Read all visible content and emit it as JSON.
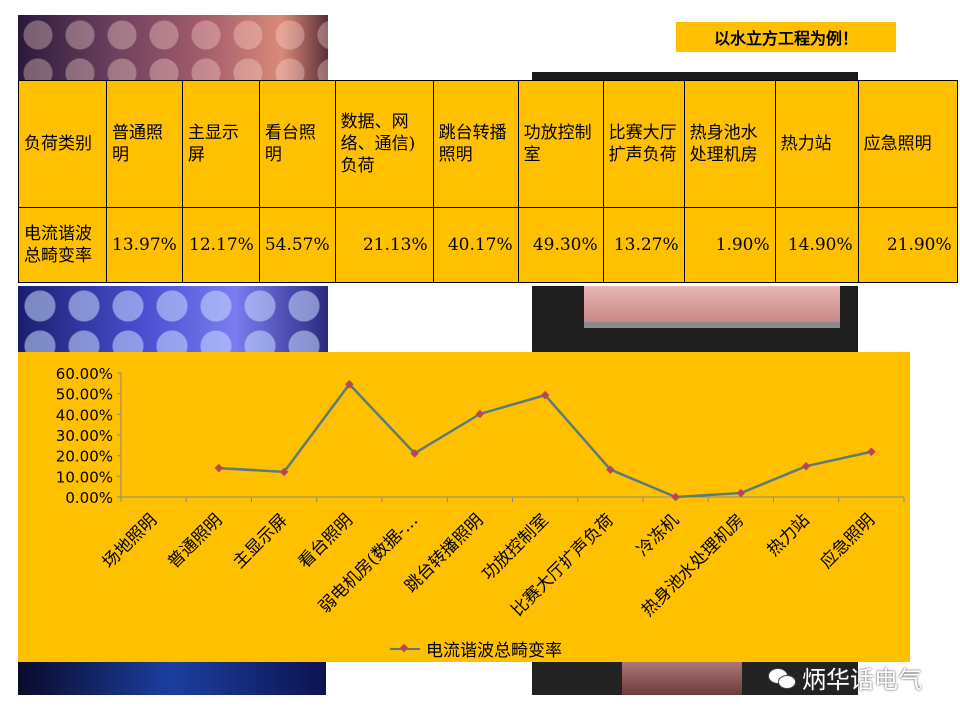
{
  "header_label": "以水立方工程为例！",
  "table": {
    "header": [
      "负荷类别",
      "普通照明",
      "主显示屏",
      "看台照明",
      "数据、网络、通信)负荷",
      "跳台转播照明",
      "功放控制室",
      "比赛大厅扩声负荷",
      "热身池水处理机房",
      "热力站",
      "应急照明"
    ],
    "row_label": "电流谐波总畸变率",
    "row_values": [
      "13.97%",
      "12.17%",
      "54.57%",
      "21.13%",
      "40.17%",
      "49.30%",
      "13.27%",
      "1.90%",
      "14.90%",
      "21.90%"
    ]
  },
  "chart_data": {
    "type": "line",
    "categories": [
      "场地照明",
      "普通照明",
      "主显示屏",
      "看台照明",
      "弱电机房(数据-…",
      "跳台转播照明",
      "功放控制室",
      "比赛大厅扩声负荷",
      "冷冻机",
      "热身池水处理机房",
      "热力站",
      "应急照明"
    ],
    "series": [
      {
        "name": "电流谐波总畸变率",
        "values": [
          null,
          13.97,
          12.17,
          54.57,
          21.13,
          40.17,
          49.3,
          13.27,
          0.0,
          1.9,
          14.9,
          21.9
        ],
        "color": "#5b7b7a",
        "marker_color": "#b8455b"
      }
    ],
    "yticks": [
      "0.00%",
      "10.00%",
      "20.00%",
      "30.00%",
      "40.00%",
      "50.00%",
      "60.00%"
    ],
    "ylim": [
      0,
      60
    ],
    "grid": false,
    "legend": "bottom"
  },
  "watermark": "炳华话电气"
}
